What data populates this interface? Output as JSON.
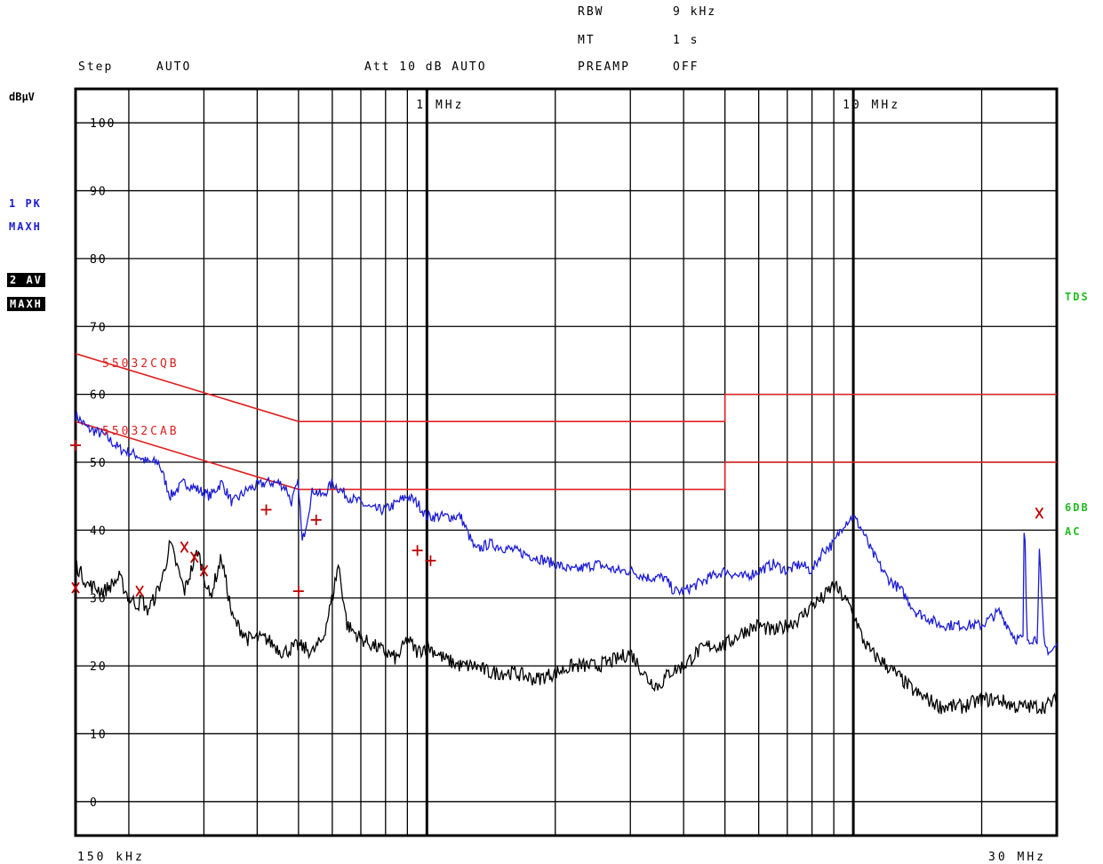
{
  "header": {
    "rbw_label": "RBW",
    "rbw_value": "9 kHz",
    "mt_label": "MT",
    "mt_value": "1 s",
    "step_label": "Step",
    "step_value": "AUTO",
    "att_text": "Att 10 dB AUTO",
    "preamp_label": "PREAMP",
    "preamp_value": "OFF"
  },
  "side": {
    "unit": "dBµV",
    "trace1_line1": "1 PK",
    "trace1_line2": "MAXH",
    "trace2_line1": "2 AV",
    "trace2_line2": "MAXH",
    "right_tds": "TDS",
    "right_6db": "6DB",
    "right_ac": "AC"
  },
  "colors": {
    "trace1": "#1d1dd6",
    "trace2": "#000000",
    "limit": "#e02020",
    "marker": "#c00000"
  },
  "chart_data": {
    "type": "line",
    "xlabel": "",
    "ylabel": "dBµV",
    "x_scale": "log",
    "xlim_hz": [
      150000,
      30000000
    ],
    "ylim": [
      -5,
      105
    ],
    "grid": true,
    "y_ticks": [
      0,
      10,
      20,
      30,
      40,
      50,
      60,
      70,
      80,
      90,
      100
    ],
    "x_labels": [
      {
        "hz": 150000,
        "text": "150 kHz"
      },
      {
        "hz": 1000000,
        "text": "1 MHz"
      },
      {
        "hz": 10000000,
        "text": "10 MHz"
      },
      {
        "hz": 30000000,
        "text": "30 MHz"
      }
    ],
    "limit_lines": [
      {
        "name": "55032CQB",
        "points": [
          [
            150000,
            66
          ],
          [
            500000,
            56
          ],
          [
            5000000,
            56
          ],
          [
            5000000,
            60
          ],
          [
            30000000,
            60
          ]
        ]
      },
      {
        "name": "55032CAB",
        "points": [
          [
            150000,
            56
          ],
          [
            500000,
            46
          ],
          [
            5000000,
            46
          ],
          [
            5000000,
            50
          ],
          [
            30000000,
            50
          ]
        ]
      }
    ],
    "series": [
      {
        "name": "1 PK MAXH",
        "color": "#1d1dd6",
        "x": [
          150000,
          160000,
          175000,
          190000,
          210000,
          220000,
          235000,
          250000,
          270000,
          290000,
          310000,
          330000,
          350000,
          380000,
          420000,
          450000,
          470000,
          480000,
          500000,
          510000,
          540000,
          570000,
          600000,
          650000,
          700000,
          750000,
          800000,
          850000,
          900000,
          950000,
          1000000,
          1050000,
          1100000,
          1200000,
          1300000,
          1400000,
          1600000,
          1800000,
          2000000,
          2200000,
          2500000,
          2800000,
          3000000,
          3300000,
          3600000,
          3800000,
          4000000,
          4300000,
          4600000,
          5000000,
          5500000,
          6000000,
          6500000,
          7000000,
          7500000,
          8000000,
          8500000,
          9000000,
          9500000,
          10000000,
          10500000,
          11000000,
          12000000,
          13000000,
          14000000,
          15000000,
          16000000,
          18000000,
          20000000,
          22000000,
          24000000,
          25000000,
          25200000,
          25500000,
          26000000,
          27000000,
          27300000,
          28000000,
          29000000,
          30000000
        ],
        "y": [
          57,
          55,
          54,
          52,
          51,
          50,
          50,
          45,
          47,
          46,
          45,
          47,
          44,
          46,
          47,
          47,
          46,
          44,
          47,
          38,
          46,
          45,
          47,
          45,
          44,
          43,
          43,
          44,
          45,
          44,
          42,
          42,
          42,
          42,
          37,
          38,
          37,
          36,
          35,
          34,
          35,
          34,
          34,
          33,
          33,
          31,
          31,
          32,
          33,
          34,
          33,
          34,
          35,
          34,
          35,
          34,
          37,
          38,
          41,
          42,
          40,
          37,
          33,
          31,
          28,
          27,
          26,
          26,
          26,
          28,
          24,
          24,
          45,
          24,
          24,
          24,
          37,
          23,
          22,
          23
        ]
      },
      {
        "name": "2 AV MAXH",
        "color": "#000000",
        "x": [
          150000,
          160000,
          175000,
          190000,
          200000,
          210000,
          215000,
          220000,
          230000,
          240000,
          250000,
          270000,
          290000,
          310000,
          330000,
          350000,
          380000,
          420000,
          460000,
          500000,
          540000,
          570000,
          600000,
          620000,
          650000,
          700000,
          750000,
          800000,
          850000,
          900000,
          950000,
          1000000,
          1050000,
          1100000,
          1200000,
          1300000,
          1400000,
          1600000,
          1800000,
          2000000,
          2200000,
          2500000,
          2800000,
          3000000,
          3300000,
          3500000,
          3700000,
          4000000,
          4300000,
          4600000,
          5000000,
          5500000,
          6000000,
          6500000,
          7000000,
          7500000,
          8000000,
          8500000,
          9000000,
          9500000,
          10000000,
          10500000,
          11000000,
          12000000,
          13000000,
          14000000,
          15000000,
          16000000,
          18000000,
          20000000,
          22000000,
          24000000,
          26000000,
          28000000,
          30000000
        ],
        "y": [
          35,
          32,
          31,
          33,
          30,
          29,
          30,
          28,
          30,
          33,
          38,
          31,
          37,
          30,
          36,
          27,
          24,
          24,
          22,
          23,
          22,
          24,
          30,
          35,
          26,
          24,
          23,
          22,
          21,
          24,
          22,
          23,
          22,
          21,
          20,
          20,
          19,
          19,
          18,
          19,
          20,
          20,
          21,
          22,
          18,
          17,
          19,
          20,
          22,
          23,
          23,
          25,
          26,
          25,
          26,
          27,
          29,
          30,
          32,
          30,
          28,
          24,
          22,
          20,
          18,
          16,
          15,
          14,
          14,
          15,
          15,
          14,
          14,
          14,
          15
        ]
      }
    ],
    "markers": [
      {
        "hz": 150000,
        "dbuv": 52.5,
        "symbol": "+"
      },
      {
        "hz": 150000,
        "dbuv": 31.5,
        "symbol": "x"
      },
      {
        "hz": 212000,
        "dbuv": 31,
        "symbol": "x"
      },
      {
        "hz": 270000,
        "dbuv": 37.5,
        "symbol": "x"
      },
      {
        "hz": 285000,
        "dbuv": 36,
        "symbol": "x"
      },
      {
        "hz": 300000,
        "dbuv": 34,
        "symbol": "x"
      },
      {
        "hz": 420000,
        "dbuv": 43,
        "symbol": "+"
      },
      {
        "hz": 500000,
        "dbuv": 31,
        "symbol": "+"
      },
      {
        "hz": 550000,
        "dbuv": 41.5,
        "symbol": "+"
      },
      {
        "hz": 950000,
        "dbuv": 37,
        "symbol": "+"
      },
      {
        "hz": 1020000,
        "dbuv": 35.5,
        "symbol": "+"
      },
      {
        "hz": 27300000,
        "dbuv": 42.5,
        "symbol": "x"
      }
    ]
  }
}
